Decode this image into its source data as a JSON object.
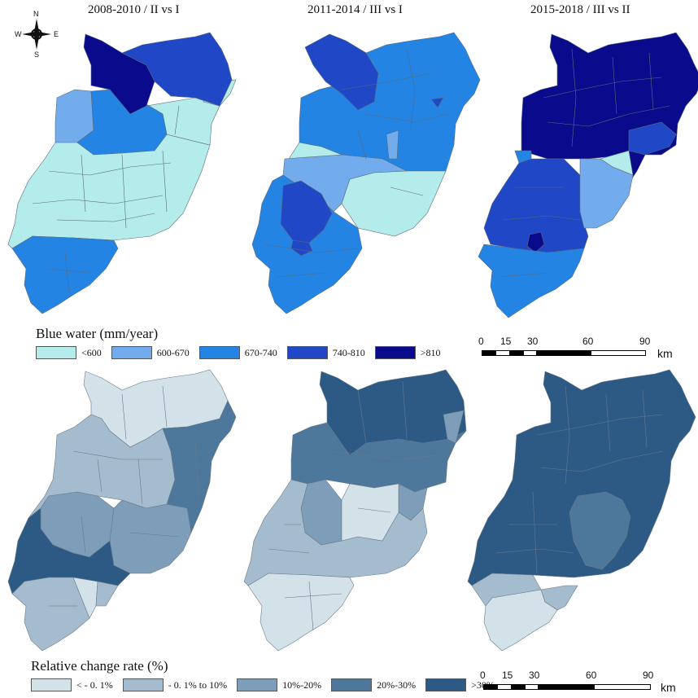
{
  "panels": [
    {
      "title": "2008-2010  /  II vs I"
    },
    {
      "title": "2011-2014  /  III vs I"
    },
    {
      "title": "2015-2018  /  III vs II"
    }
  ],
  "compass": {
    "n": "N",
    "s": "S",
    "e": "E",
    "w": "W",
    "icon": "compass-rose-icon"
  },
  "blue_water_legend": {
    "title": "Blue water (mm/year)",
    "items": [
      {
        "label": "<600",
        "color": "#b4eceb"
      },
      {
        "label": "600-670",
        "color": "#72acec"
      },
      {
        "label": "670-740",
        "color": "#2384e3"
      },
      {
        "label": "740-810",
        "color": "#1f47c6"
      },
      {
        "label": ">810",
        "color": "#0a0b8c"
      }
    ]
  },
  "change_legend": {
    "title": "Relative change rate (%)",
    "items": [
      {
        "label": "< - 0. 1%",
        "color": "#d3e1e9"
      },
      {
        "label": "- 0. 1% to 10%",
        "color": "#a5bcce"
      },
      {
        "label": "10%-20%",
        "color": "#7d9db8"
      },
      {
        "label": "20%-30%",
        "color": "#4e779c"
      },
      {
        "label": ">30%",
        "color": "#2c5a85"
      }
    ]
  },
  "scalebar": {
    "ticks": [
      "0",
      "15",
      "30",
      "60",
      "90"
    ],
    "unit": "km"
  }
}
